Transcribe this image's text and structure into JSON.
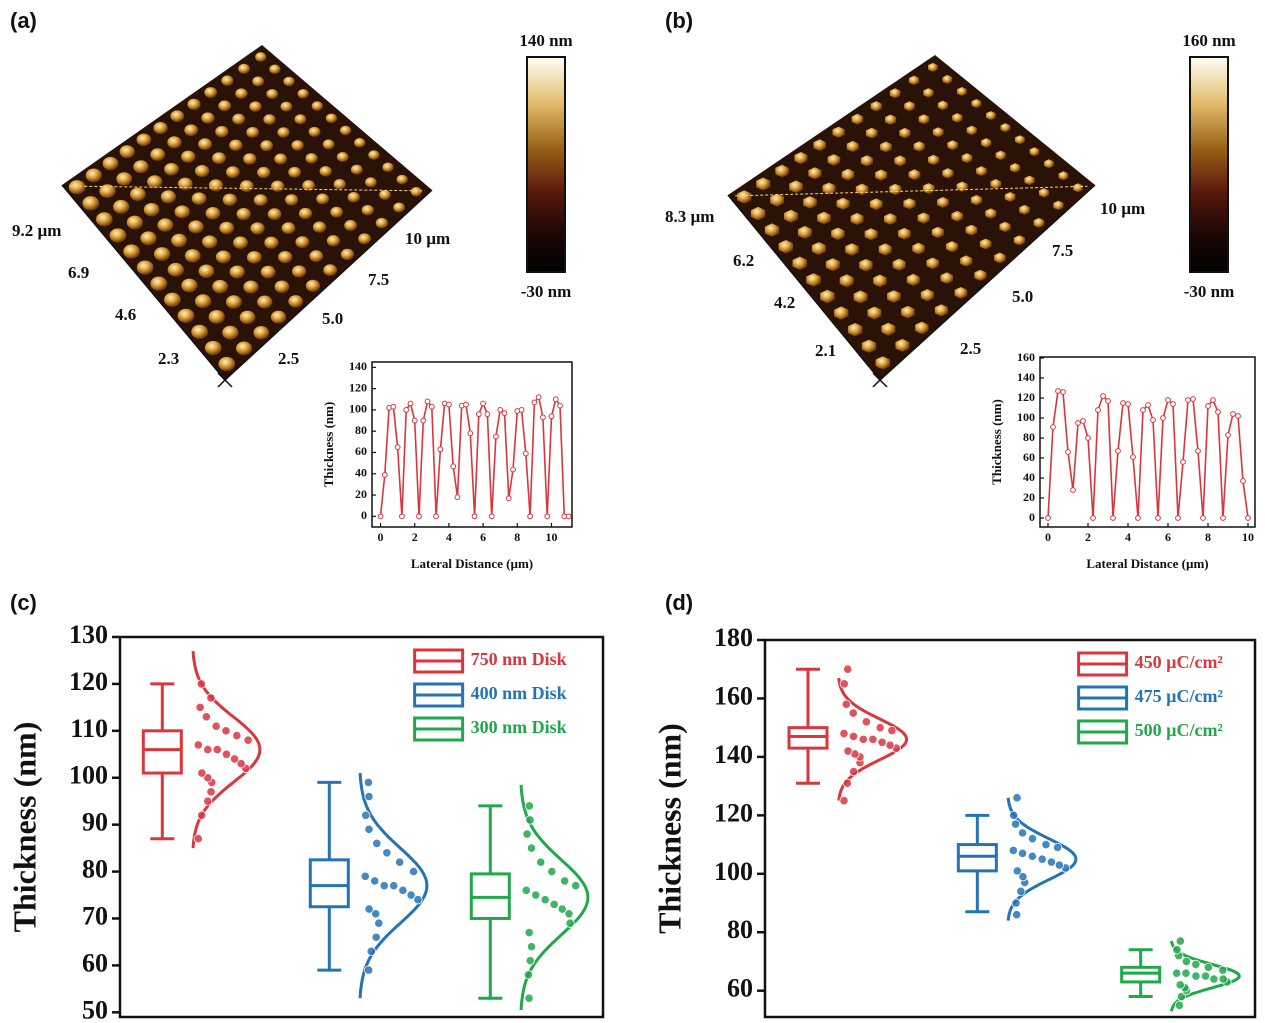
{
  "panels": [
    {
      "label": "(a)",
      "afm_axis_left": [
        "9.2 µm",
        "6.9",
        "4.6",
        "2.3"
      ],
      "afm_axis_right": [
        "10 µm",
        "7.5",
        "5.0",
        "2.5"
      ],
      "colorbar_max": "140 nm",
      "colorbar_min": "-30 nm"
    },
    {
      "label": "(b)",
      "afm_axis_left": [
        "8.3 µm",
        "6.2",
        "4.2",
        "2.1"
      ],
      "afm_axis_right": [
        "10 µm",
        "7.5",
        "5.0",
        "2.5"
      ],
      "colorbar_max": "160 nm",
      "colorbar_min": "-30 nm"
    },
    {
      "label": "(c)"
    },
    {
      "label": "(d)"
    }
  ],
  "chart_data": [
    {
      "type": "line",
      "xlabel": "Lateral Distance (µm)",
      "ylabel": "Thickness (nm)",
      "x": [
        0,
        0.25,
        0.5,
        0.75,
        1,
        1.25,
        1.5,
        1.75,
        2,
        2.25,
        2.5,
        2.75,
        3,
        3.25,
        3.5,
        3.75,
        4,
        4.25,
        4.5,
        4.75,
        5,
        5.25,
        5.5,
        5.75,
        6,
        6.25,
        6.5,
        6.75,
        7,
        7.25,
        7.5,
        7.75,
        8,
        8.25,
        8.5,
        8.75,
        9,
        9.25,
        9.5,
        9.75,
        10,
        10.25,
        10.5,
        10.75,
        11
      ],
      "series": [
        {
          "color": "#d9363e",
          "values": [
            0,
            39,
            102,
            103,
            65,
            0,
            100,
            106,
            90,
            0,
            90,
            108,
            103,
            0,
            63,
            106,
            105,
            47,
            18,
            104,
            105,
            78,
            0,
            96,
            106,
            96,
            0,
            75,
            100,
            97,
            17,
            44,
            99,
            100,
            59,
            0,
            107,
            112,
            93,
            0,
            94,
            110,
            104,
            0,
            0
          ]
        }
      ],
      "xlim": [
        -0.5,
        11.2
      ],
      "xticks": [
        0,
        2,
        4,
        6,
        8,
        10
      ],
      "ylim": [
        -10,
        145
      ],
      "yticks": [
        0,
        20,
        40,
        60,
        80,
        100,
        120,
        140
      ]
    },
    {
      "type": "line",
      "xlabel": "Lateral Distance (µm)",
      "ylabel": "Thickness (nm)",
      "x": [
        0,
        0.25,
        0.5,
        0.75,
        1,
        1.25,
        1.5,
        1.75,
        2,
        2.25,
        2.5,
        2.75,
        3,
        3.25,
        3.5,
        3.75,
        4,
        4.25,
        4.5,
        4.75,
        5,
        5.25,
        5.5,
        5.75,
        6,
        6.25,
        6.5,
        6.75,
        7,
        7.25,
        7.5,
        7.75,
        8,
        8.25,
        8.5,
        8.75,
        9,
        9.25,
        9.5,
        9.75,
        10
      ],
      "series": [
        {
          "color": "#d9363e",
          "values": [
            0,
            91,
            127,
            126,
            66,
            28,
            95,
            97,
            80,
            0,
            108,
            122,
            117,
            0,
            67,
            115,
            114,
            61,
            0,
            108,
            113,
            98,
            0,
            100,
            118,
            114,
            0,
            56,
            118,
            119,
            67,
            0,
            112,
            118,
            106,
            0,
            83,
            104,
            102,
            37,
            0
          ]
        }
      ],
      "xlim": [
        -0.4,
        10.35
      ],
      "xticks": [
        0,
        2,
        4,
        6,
        8,
        10
      ],
      "ylim": [
        -9,
        161
      ],
      "yticks": [
        0,
        20,
        40,
        60,
        80,
        100,
        120,
        140,
        160
      ]
    },
    {
      "type": "box",
      "ylabel": "Thickness (nm)",
      "ylim": [
        49,
        130
      ],
      "yticks": [
        50,
        60,
        70,
        80,
        90,
        100,
        110,
        120,
        130
      ],
      "series": [
        {
          "name": "750 nm Disk",
          "color": "#d9363e",
          "whisker_low": 87,
          "q1": 101,
          "median": 106,
          "q3": 110,
          "whisker_high": 120,
          "mean": 106,
          "sd": 7,
          "points": [
            87,
            92,
            95,
            97,
            99,
            100,
            101,
            102,
            103,
            104,
            105,
            106,
            106,
            107,
            108,
            109,
            110,
            111,
            113,
            115,
            117,
            120
          ]
        },
        {
          "name": "400 nm Disk",
          "color": "#2474b5",
          "whisker_low": 59,
          "q1": 72.5,
          "median": 77,
          "q3": 82.5,
          "whisker_high": 99,
          "mean": 77,
          "sd": 8,
          "points": [
            59,
            63,
            66,
            69,
            71,
            72,
            74,
            75,
            76,
            77,
            77,
            78,
            79,
            80,
            82,
            84,
            86,
            89,
            92,
            96,
            99
          ]
        },
        {
          "name": "300 nm Disk",
          "color": "#20a84a",
          "whisker_low": 53,
          "q1": 70,
          "median": 74.5,
          "q3": 79.5,
          "whisker_high": 94,
          "mean": 74.5,
          "sd": 8,
          "points": [
            53,
            58,
            61,
            64,
            67,
            69,
            71,
            72,
            73,
            74,
            75,
            76,
            77,
            78,
            80,
            82,
            85,
            88,
            91,
            94
          ]
        }
      ]
    },
    {
      "type": "box",
      "ylabel": "Thickness (nm)",
      "ylim": [
        51,
        180
      ],
      "yticks": [
        60,
        80,
        100,
        120,
        140,
        160,
        180
      ],
      "series": [
        {
          "name": "450 µC/cm²",
          "color": "#d9363e",
          "whisker_low": 131,
          "q1": 143,
          "median": 147,
          "q3": 150,
          "whisker_high": 170,
          "mean": 146,
          "sd": 7,
          "points": [
            125,
            131,
            135,
            138,
            140,
            141,
            142,
            143,
            144,
            145,
            146,
            146,
            147,
            148,
            149,
            150,
            152,
            155,
            158,
            165,
            170
          ]
        },
        {
          "name": "475 µC/cm²",
          "color": "#2474b5",
          "whisker_low": 87,
          "q1": 101,
          "median": 106,
          "q3": 110,
          "whisker_high": 120,
          "mean": 105,
          "sd": 7,
          "points": [
            86,
            90,
            94,
            97,
            99,
            101,
            102,
            103,
            104,
            105,
            106,
            107,
            108,
            109,
            110,
            112,
            114,
            117,
            120,
            126
          ]
        },
        {
          "name": "500 µC/cm²",
          "color": "#20a84a",
          "whisker_low": 58,
          "q1": 63,
          "median": 66,
          "q3": 68,
          "whisker_high": 74,
          "mean": 65,
          "sd": 4,
          "points": [
            55,
            58,
            60,
            61,
            62,
            63,
            64,
            64,
            65,
            65,
            66,
            66,
            67,
            68,
            69,
            70,
            72,
            74,
            77
          ]
        }
      ]
    }
  ]
}
